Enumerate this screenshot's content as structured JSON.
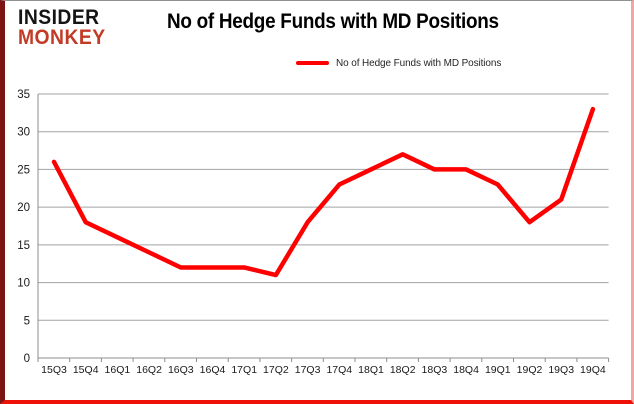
{
  "logo": {
    "line1": "INSIDER",
    "line2": "MONKEY"
  },
  "header": {
    "title": "No of Hedge Funds with MD Positions"
  },
  "legend": {
    "label": "No of Hedge Funds with MD Positions"
  },
  "colors": {
    "series_line": "#fe0000",
    "gridline": "#a3a3a3",
    "axis_line": "#8c8c8c",
    "tick_label": "#1a1a1a",
    "logo_top": "#141414",
    "logo_bottom": "#c23b26",
    "frame_bottom": "#ee1107",
    "frame_left": "#7d1414"
  },
  "chart_data": {
    "type": "line",
    "title": "No of Hedge Funds with MD Positions",
    "categories": [
      "15Q3",
      "15Q4",
      "16Q1",
      "16Q2",
      "16Q3",
      "16Q4",
      "17Q1",
      "17Q2",
      "17Q3",
      "17Q4",
      "18Q1",
      "18Q2",
      "18Q3",
      "18Q4",
      "19Q1",
      "19Q2",
      "19Q3",
      "19Q4"
    ],
    "series": [
      {
        "name": "No of Hedge Funds with MD Positions",
        "color": "#fe0000",
        "values": [
          26,
          18,
          16,
          14,
          12,
          12,
          12,
          11,
          18,
          23,
          25,
          27,
          25,
          25,
          23,
          18,
          21,
          33
        ]
      }
    ],
    "xlabel": "",
    "ylabel": "",
    "ylim": [
      0,
      35
    ],
    "ytick_step": 5,
    "grid": true,
    "legend_position": "top-center"
  }
}
